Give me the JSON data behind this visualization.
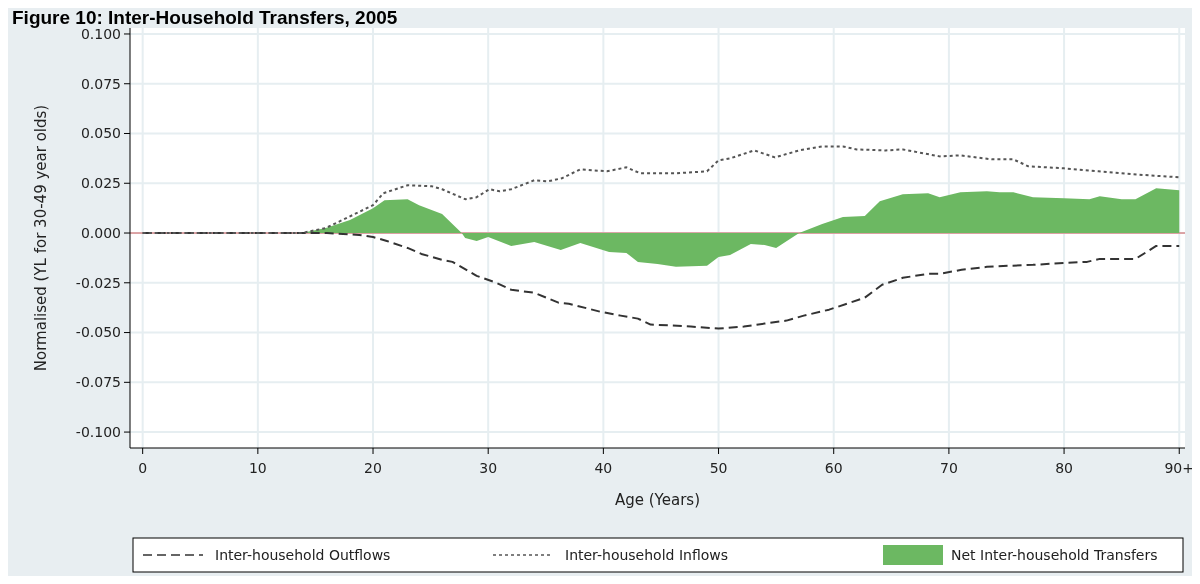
{
  "chart_data": {
    "type": "line",
    "title": "Figure 10: Inter-Household Transfers, 2005",
    "xlabel": "Age (Years)",
    "ylabel": "Normalised (YL for 30-49 year olds)",
    "xlim": [
      -1.1,
      90.5
    ],
    "xticks": [
      0,
      10,
      20,
      30,
      40,
      50,
      60,
      70,
      80,
      {
        "value": 90,
        "label": "90+"
      }
    ],
    "ylim": [
      -0.108,
      0.103
    ],
    "yticks": [
      {
        "value": 0.1,
        "label": "0.100"
      },
      {
        "value": 0.075,
        "label": "0.075"
      },
      {
        "value": 0.05,
        "label": "0.050"
      },
      {
        "value": 0.025,
        "label": "0.025"
      },
      {
        "value": 0,
        "label": "0.000"
      },
      {
        "value": -0.025,
        "label": "-0.025"
      },
      {
        "value": -0.05,
        "label": "-0.050"
      },
      {
        "value": -0.075,
        "label": "-0.075"
      },
      {
        "value": -0.1,
        "label": "-0.100"
      }
    ],
    "grid": true,
    "legend": "bottom",
    "ref_lines": [
      {
        "axis": "y",
        "value": 0,
        "color": "#cc3333"
      }
    ],
    "series": [
      {
        "name": "Inter-household Outflows",
        "line_style": "dashed",
        "color": "#333333",
        "x": [
          0,
          16,
          18.8,
          20,
          21.2,
          23,
          24.2,
          26,
          26.9,
          29,
          30.7,
          32,
          34,
          36.1,
          37,
          39.7,
          41.5,
          43,
          44.1,
          46,
          47.6,
          50,
          52.2,
          54,
          55.9,
          57.4,
          59.6,
          62.7,
          64.2,
          66,
          68.2,
          69.2,
          71.1,
          73.3,
          75.1,
          77.3,
          80,
          82,
          83.1,
          84.4,
          86.2,
          88,
          90
        ],
        "values": [
          0,
          0,
          -0.001,
          -0.002,
          -0.004,
          -0.0075,
          -0.0105,
          -0.0135,
          -0.0145,
          -0.0215,
          -0.025,
          -0.0285,
          -0.03,
          -0.035,
          -0.0355,
          -0.0395,
          -0.0415,
          -0.043,
          -0.046,
          -0.0465,
          -0.047,
          -0.048,
          -0.047,
          -0.0455,
          -0.044,
          -0.0415,
          -0.0385,
          -0.0325,
          -0.026,
          -0.0225,
          -0.0205,
          -0.0205,
          -0.0185,
          -0.017,
          -0.0165,
          -0.016,
          -0.015,
          -0.0145,
          -0.013,
          -0.013,
          -0.013,
          -0.0065,
          -0.0065
        ]
      },
      {
        "name": "Inter-household Inflows",
        "line_style": "dotted",
        "color": "#555555",
        "x": [
          0,
          13.8,
          15.9,
          20,
          20.9,
          23,
          25.1,
          26,
          28,
          29,
          30.1,
          31,
          32,
          34,
          35.2,
          36.4,
          38,
          40.3,
          42,
          43.2,
          46.3,
          49,
          50,
          51,
          53.1,
          54.9,
          57,
          59,
          60.8,
          62,
          64.5,
          66,
          69.2,
          71,
          73.7,
          75.6,
          76.9,
          80,
          83,
          86,
          90
        ],
        "values": [
          0,
          0,
          0.0025,
          0.014,
          0.02,
          0.024,
          0.0235,
          0.022,
          0.017,
          0.018,
          0.022,
          0.021,
          0.022,
          0.0265,
          0.026,
          0.0275,
          0.032,
          0.031,
          0.033,
          0.03,
          0.03,
          0.031,
          0.0365,
          0.0375,
          0.0415,
          0.038,
          0.0415,
          0.0435,
          0.0435,
          0.042,
          0.0415,
          0.042,
          0.0385,
          0.039,
          0.037,
          0.037,
          0.0335,
          0.0325,
          0.031,
          0.0295,
          0.028
        ]
      },
      {
        "name": "Net Inter-household Transfers",
        "type": "area",
        "color": "#6cb862",
        "x": [
          0,
          13.8,
          15.9,
          18,
          20,
          21,
          23,
          24,
          26,
          27.7,
          28,
          29,
          30,
          32,
          34,
          36.3,
          38,
          40.5,
          42,
          43,
          44.7,
          46.3,
          49,
          50,
          51,
          52.8,
          54,
          55,
          57,
          59,
          60.8,
          62.7,
          64,
          66,
          68.2,
          69.2,
          71,
          73.3,
          74.4,
          75.6,
          77.3,
          80,
          82.2,
          83.1,
          85,
          86.2,
          88,
          90
        ],
        "values": [
          0,
          0,
          0.0025,
          0.0065,
          0.0125,
          0.0165,
          0.017,
          0.014,
          0.0095,
          0,
          -0.0025,
          -0.004,
          -0.002,
          -0.0065,
          -0.0045,
          -0.0085,
          -0.005,
          -0.0095,
          -0.01,
          -0.0145,
          -0.0155,
          -0.017,
          -0.0165,
          -0.012,
          -0.011,
          -0.0055,
          -0.006,
          -0.0075,
          0,
          0.0045,
          0.008,
          0.0085,
          0.016,
          0.0195,
          0.02,
          0.018,
          0.0205,
          0.021,
          0.0205,
          0.0205,
          0.018,
          0.0175,
          0.017,
          0.0185,
          0.017,
          0.017,
          0.0225,
          0.0215
        ]
      }
    ]
  }
}
